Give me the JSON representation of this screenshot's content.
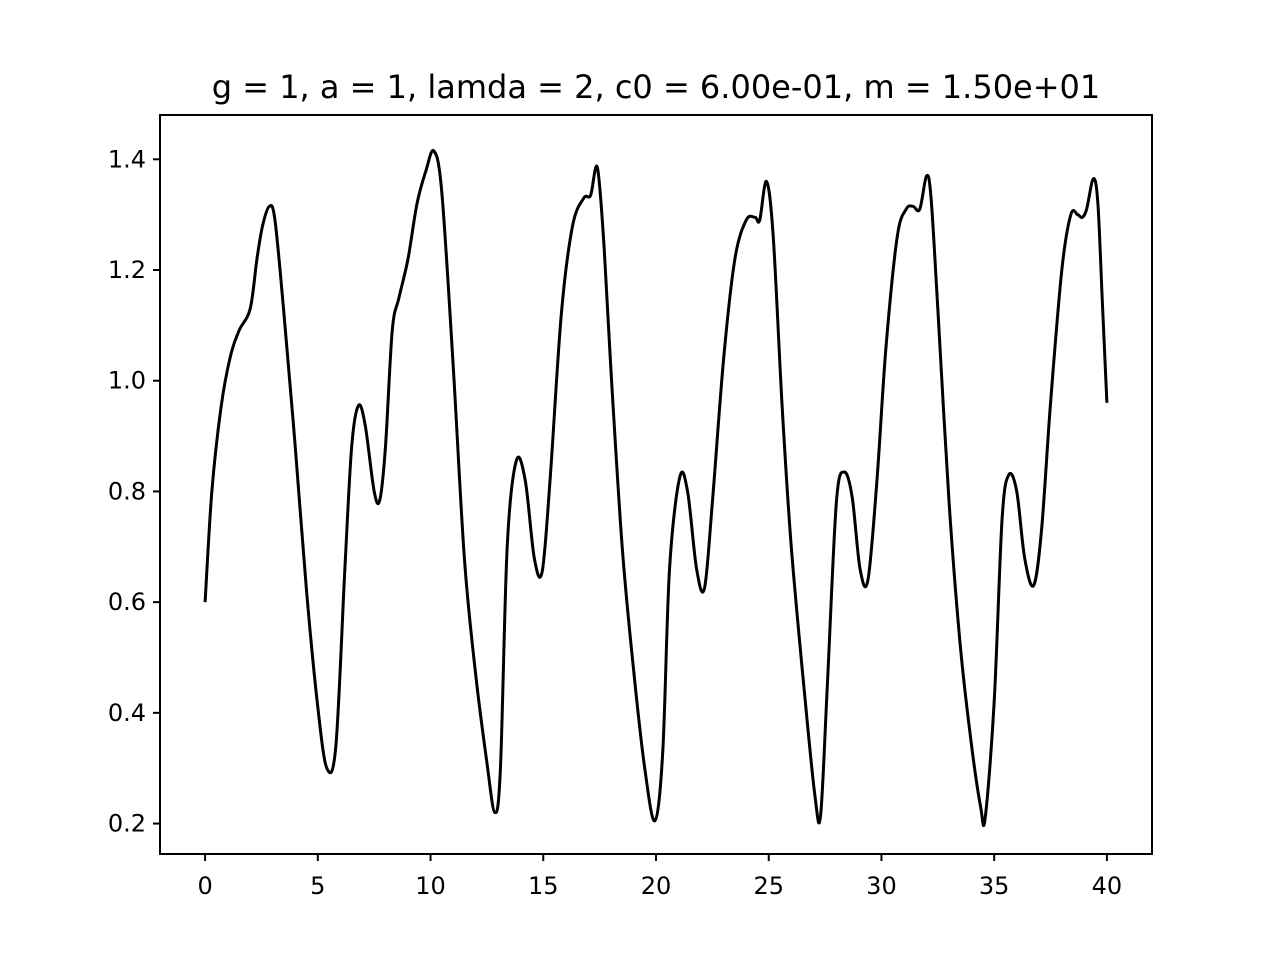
{
  "chart_data": {
    "type": "line",
    "title": "g = 1, a = 1, lamda = 2, c0 = 6.00e-01, m = 1.50e+01",
    "xlabel": "",
    "ylabel": "",
    "xlim": [
      -2,
      42
    ],
    "ylim": [
      0.145,
      1.48
    ],
    "x_ticks": [
      0,
      5,
      10,
      15,
      20,
      25,
      30,
      35,
      40
    ],
    "x_tick_labels": [
      "0",
      "5",
      "10",
      "15",
      "20",
      "25",
      "30",
      "35",
      "40"
    ],
    "y_ticks": [
      0.2,
      0.4,
      0.6,
      0.8,
      1.0,
      1.2,
      1.4
    ],
    "y_tick_labels": [
      "0.2",
      "0.4",
      "0.6",
      "0.8",
      "1.0",
      "1.2",
      "1.4"
    ],
    "grid": false,
    "line_color": "#000000",
    "series": [
      {
        "x": [
          0,
          0.3,
          0.7,
          1.1,
          1.5,
          2.0,
          2.3,
          2.55,
          2.85,
          3.1,
          3.5,
          4.0,
          4.5,
          5.0,
          5.4,
          5.8,
          6.2,
          6.5,
          6.8,
          7.1,
          7.5,
          7.75,
          8.0,
          8.3,
          8.6,
          9.0,
          9.4,
          9.8,
          10.15,
          10.5,
          11.0,
          11.5,
          12.0,
          12.5,
          12.85,
          13.1,
          13.4,
          13.8,
          14.2,
          14.6,
          14.95,
          15.3,
          15.8,
          16.3,
          16.8,
          17.1,
          17.4,
          17.7,
          18.0,
          18.5,
          19.0,
          19.5,
          19.95,
          20.3,
          20.6,
          21.05,
          21.4,
          21.8,
          22.15,
          22.5,
          23.0,
          23.5,
          24.0,
          24.4,
          24.6,
          24.9,
          25.2,
          25.6,
          26.0,
          26.6,
          27.05,
          27.3,
          27.6,
          28.0,
          28.35,
          28.7,
          29.05,
          29.4,
          29.8,
          30.2,
          30.7,
          31.1,
          31.4,
          31.7,
          32.0,
          32.2,
          32.5,
          33.0,
          33.5,
          34.0,
          34.4,
          34.6,
          35.0,
          35.35,
          35.65,
          36.0,
          36.35,
          36.75,
          37.1,
          37.5,
          38.0,
          38.4,
          38.7,
          38.9,
          39.1,
          39.4,
          39.6,
          39.8,
          40.0
        ],
        "y": [
          0.6,
          0.8,
          0.95,
          1.04,
          1.09,
          1.13,
          1.22,
          1.28,
          1.315,
          1.29,
          1.12,
          0.88,
          0.62,
          0.41,
          0.3,
          0.34,
          0.66,
          0.88,
          0.955,
          0.92,
          0.8,
          0.785,
          0.88,
          1.09,
          1.15,
          1.22,
          1.32,
          1.38,
          1.415,
          1.34,
          1.03,
          0.68,
          0.47,
          0.31,
          0.22,
          0.3,
          0.7,
          0.855,
          0.82,
          0.68,
          0.655,
          0.82,
          1.12,
          1.28,
          1.33,
          1.335,
          1.385,
          1.24,
          1.02,
          0.7,
          0.48,
          0.3,
          0.205,
          0.33,
          0.66,
          0.825,
          0.8,
          0.66,
          0.625,
          0.78,
          1.04,
          1.22,
          1.29,
          1.295,
          1.29,
          1.36,
          1.26,
          0.95,
          0.7,
          0.43,
          0.25,
          0.215,
          0.45,
          0.78,
          0.835,
          0.79,
          0.66,
          0.64,
          0.82,
          1.06,
          1.26,
          1.31,
          1.315,
          1.31,
          1.37,
          1.33,
          1.13,
          0.78,
          0.52,
          0.34,
          0.23,
          0.21,
          0.42,
          0.75,
          0.83,
          0.8,
          0.68,
          0.63,
          0.73,
          0.96,
          1.2,
          1.3,
          1.3,
          1.295,
          1.31,
          1.365,
          1.32,
          1.14,
          0.96
        ]
      }
    ]
  }
}
